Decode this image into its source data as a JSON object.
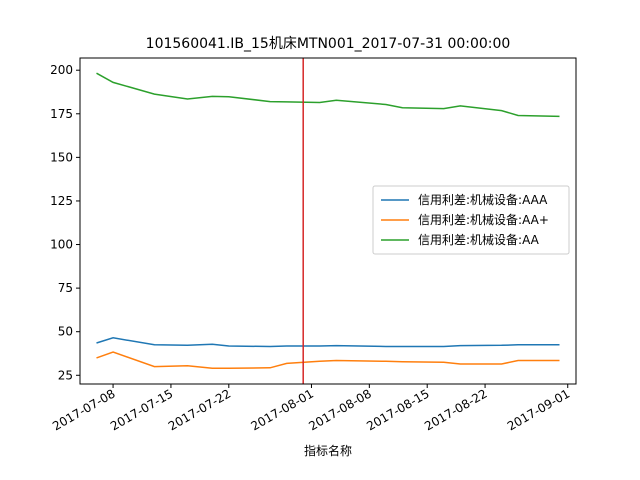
{
  "chart_data": {
    "type": "line",
    "title": "101560041.IB_15机床MTN001_2017-07-31 00:00:00",
    "xlabel": "指标名称",
    "ylabel": "",
    "x": [
      "2017-07-06",
      "2017-07-08",
      "2017-07-13",
      "2017-07-17",
      "2017-07-20",
      "2017-07-22",
      "2017-07-27",
      "2017-07-29",
      "2017-08-02",
      "2017-08-04",
      "2017-08-10",
      "2017-08-12",
      "2017-08-17",
      "2017-08-19",
      "2017-08-24",
      "2017-08-26",
      "2017-08-31"
    ],
    "xlim": [
      "2017-07-04",
      "2017-09-02"
    ],
    "ylim": [
      20,
      207
    ],
    "x_ticks": [
      "2017-07-08",
      "2017-07-15",
      "2017-07-22",
      "2017-08-01",
      "2017-08-08",
      "2017-08-15",
      "2017-08-22",
      "2017-09-01"
    ],
    "y_ticks": [
      25,
      50,
      75,
      100,
      125,
      150,
      175,
      200
    ],
    "series": [
      {
        "name": "信用利差:机械设备:AAA",
        "color": "#1f77b4",
        "values": [
          43.5,
          46.5,
          42.5,
          42.2,
          42.8,
          41.8,
          41.5,
          41.8,
          41.8,
          42.0,
          41.5,
          41.5,
          41.5,
          42.0,
          42.2,
          42.5,
          42.5
        ]
      },
      {
        "name": "信用利差:机械设备:AA+",
        "color": "#ff7f0e",
        "values": [
          35.0,
          38.3,
          30.0,
          30.5,
          29.0,
          29.0,
          29.3,
          31.8,
          33.0,
          33.5,
          33.0,
          32.8,
          32.5,
          31.5,
          31.5,
          33.5,
          33.5
        ]
      },
      {
        "name": "信用利差:机械设备:AA",
        "color": "#2ca02c",
        "values": [
          198.3,
          193.0,
          186.3,
          183.5,
          185.0,
          184.8,
          182.0,
          181.8,
          181.5,
          182.8,
          180.3,
          178.5,
          178.0,
          179.5,
          176.8,
          174.0,
          173.5
        ]
      }
    ],
    "vline": {
      "x": "2017-07-31",
      "color": "#d62728"
    },
    "legend_position": "center-right",
    "grid": false
  }
}
